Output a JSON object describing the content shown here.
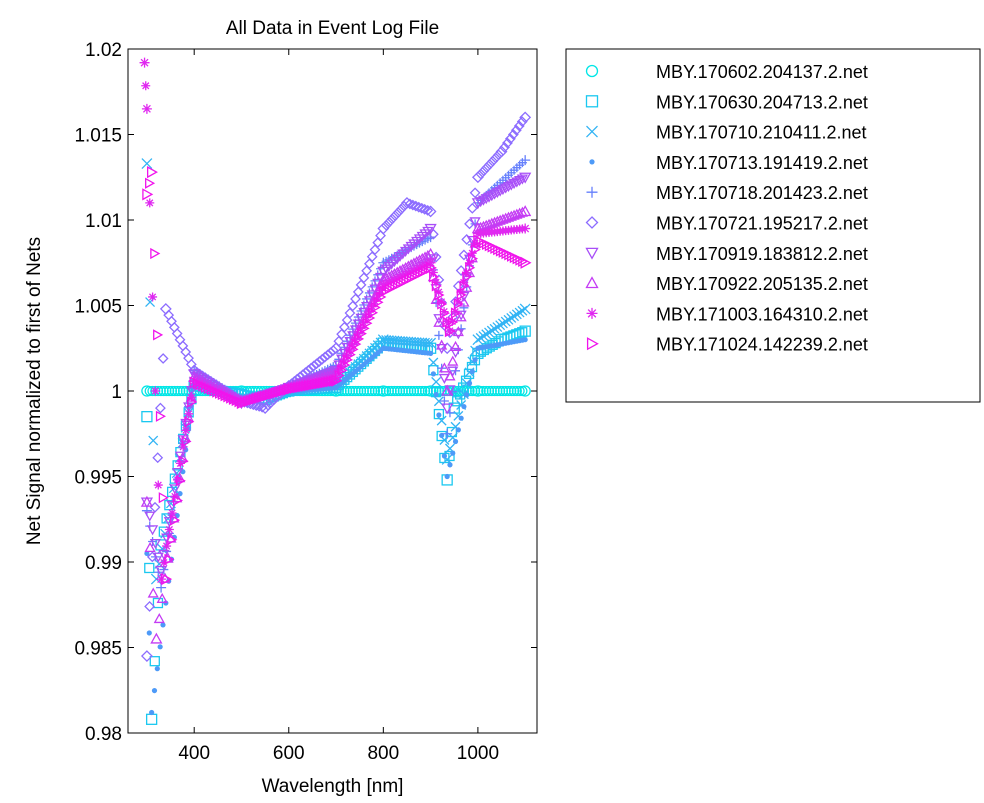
{
  "chart_data": {
    "type": "scatter",
    "title": "All Data in Event Log File",
    "xlabel": "Wavelength [nm]",
    "ylabel": "Net Signal normalized to first of Nets",
    "xlim": [
      260,
      1125
    ],
    "ylim": [
      0.98,
      1.02
    ],
    "xticks": [
      "400",
      "600",
      "800",
      "1000"
    ],
    "yticks": [
      "0.98",
      "0.985",
      "0.99",
      "0.995",
      "1",
      "1.005",
      "1.01",
      "1.015",
      "1.02"
    ],
    "grid": false,
    "legend_position": "outside-right",
    "series": [
      {
        "name": "MBY.170602.204137.2.net",
        "marker": "circle",
        "color": "#00e6e6",
        "x": [
          300,
          400,
          500,
          600,
          700,
          800,
          900,
          1000,
          1100
        ],
        "y": [
          1.0,
          1.0,
          1.0,
          1.0,
          1.0,
          1.0,
          1.0,
          1.0,
          1.0
        ]
      },
      {
        "name": "MBY.170630.204713.2.net",
        "marker": "square",
        "color": "#1ac8f0",
        "x": [
          300,
          310,
          330,
          400,
          500,
          550,
          600,
          700,
          800,
          900,
          935,
          950,
          1000,
          1050,
          1100
        ],
        "y": [
          0.9985,
          0.9808,
          0.991,
          1.0003,
          0.9998,
          0.9995,
          1.0,
          1.0002,
          1.0028,
          1.0025,
          0.9948,
          0.999,
          1.0022,
          1.003,
          1.0035
        ]
      },
      {
        "name": "MBY.170710.210411.2.net",
        "marker": "x",
        "color": "#33b4f4",
        "x": [
          300,
          320,
          400,
          500,
          600,
          700,
          800,
          900,
          935,
          1000,
          1100
        ],
        "y": [
          1.0133,
          0.989,
          1.0005,
          0.9995,
          1.0,
          1.0003,
          1.003,
          1.0028,
          0.996,
          1.003,
          1.0048
        ]
      },
      {
        "name": "MBY.170713.191419.2.net",
        "marker": "dot",
        "color": "#4d9af8",
        "x": [
          300,
          310,
          400,
          500,
          600,
          700,
          800,
          900,
          935,
          1000,
          1100
        ],
        "y": [
          0.9905,
          0.9812,
          1.0004,
          0.9996,
          1.0,
          1.0002,
          1.0025,
          1.0022,
          0.995,
          1.0025,
          1.003
        ]
      },
      {
        "name": "MBY.170718.201423.2.net",
        "marker": "plus",
        "color": "#6680fc",
        "x": [
          300,
          330,
          400,
          500,
          600,
          700,
          800,
          900,
          935,
          1000,
          1100
        ],
        "y": [
          0.993,
          0.9885,
          1.0012,
          0.9995,
          1.0002,
          1.0015,
          1.0075,
          1.009,
          0.9975,
          1.011,
          1.0135
        ]
      },
      {
        "name": "MBY.170721.195217.2.net",
        "marker": "diamond",
        "color": "#8c6cff",
        "x": [
          300,
          340,
          400,
          500,
          550,
          600,
          700,
          800,
          850,
          900,
          935,
          1000,
          1050,
          1100
        ],
        "y": [
          0.9845,
          1.0048,
          1.0012,
          0.9994,
          0.999,
          1.0003,
          1.0025,
          1.0095,
          1.011,
          1.0105,
          1.0025,
          1.0125,
          1.014,
          1.016
        ]
      },
      {
        "name": "MBY.170919.183812.2.net",
        "marker": "triangle-down",
        "color": "#a84ef8",
        "x": [
          300,
          330,
          400,
          500,
          600,
          700,
          800,
          900,
          935,
          1000,
          1100
        ],
        "y": [
          0.9935,
          0.9895,
          1.001,
          0.9993,
          1.0002,
          1.0012,
          1.007,
          1.0095,
          0.999,
          1.011,
          1.0125
        ]
      },
      {
        "name": "MBY.170922.205135.2.net",
        "marker": "triangle-up",
        "color": "#c43cf4",
        "x": [
          300,
          320,
          400,
          500,
          600,
          700,
          800,
          900,
          935,
          1000,
          1100
        ],
        "y": [
          0.9935,
          0.9855,
          1.0008,
          0.9994,
          1.0002,
          1.001,
          1.0065,
          1.008,
          1.0,
          1.0095,
          1.0105
        ]
      },
      {
        "name": "MBY.171003.164310.2.net",
        "marker": "star",
        "color": "#e028f0",
        "x": [
          295,
          300,
          330,
          400,
          500,
          600,
          700,
          800,
          900,
          940,
          1000,
          1100
        ],
        "y": [
          1.0192,
          1.0165,
          0.989,
          1.0006,
          0.9993,
          1.0002,
          1.0008,
          1.0062,
          1.0075,
          1.0035,
          1.0092,
          1.0095
        ]
      },
      {
        "name": "MBY.171024.142239.2.net",
        "marker": "triangle-right",
        "color": "#f014ec",
        "x": [
          300,
          310,
          340,
          400,
          500,
          600,
          700,
          800,
          900,
          940,
          1000,
          1100
        ],
        "y": [
          1.0115,
          1.0128,
          0.989,
          1.0005,
          0.9993,
          1.0001,
          1.0006,
          1.0058,
          1.0072,
          1.0035,
          1.0088,
          1.0075
        ]
      }
    ]
  }
}
